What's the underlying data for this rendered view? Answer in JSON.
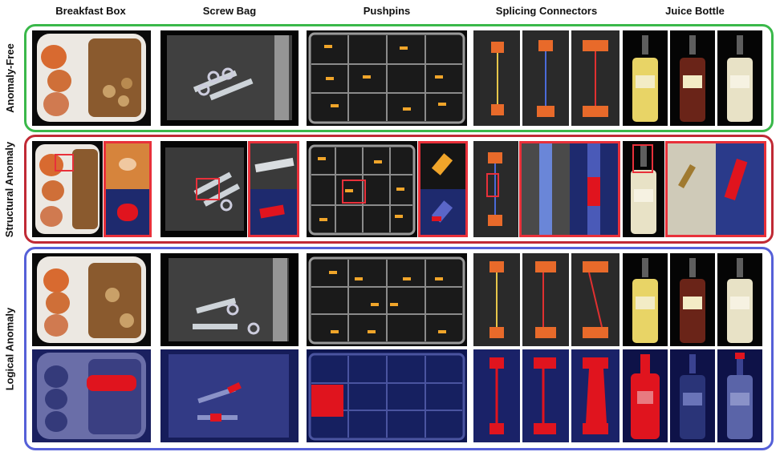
{
  "columns": [
    "Breakfast Box",
    "Screw Bag",
    "Pushpins",
    "Splicing Connectors",
    "Juice Bottle"
  ],
  "rows": [
    "Anomaly-Free",
    "Structural Anomaly",
    "Logical Anomaly"
  ],
  "colors": {
    "anomaly_free_border": "#3ab84a",
    "structural_border": "#c02a35",
    "logical_border": "#5560d8",
    "anomaly_mask": "#e0141e",
    "mask_overlay": "#12205e"
  }
}
